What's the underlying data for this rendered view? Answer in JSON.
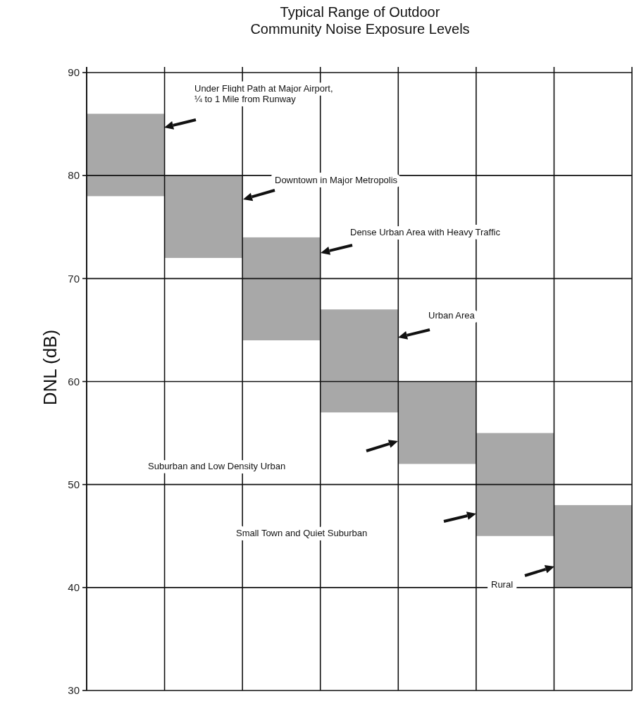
{
  "chart_data": {
    "type": "bar",
    "title": "Typical Range of Outdoor\nCommunity Noise Exposure Levels",
    "ylabel": "DNL (dB)",
    "categories": [
      null,
      null,
      null,
      null,
      null,
      null,
      null
    ],
    "base": [
      78,
      72,
      64,
      57,
      52,
      45,
      40
    ],
    "values": [
      8,
      8,
      10,
      10,
      8,
      10,
      8
    ],
    "color": "#a8a8a8",
    "ylim": [
      30,
      90
    ],
    "yticks": [
      30,
      40,
      50,
      60,
      70,
      80,
      90
    ],
    "grid": true,
    "annotations": [
      "Under Flight Path at Major Airport,\n¼ to 1 Mile from Runway",
      "Downtown in Major Metropolis",
      "Dense Urban Area with Heavy Traffic",
      "Urban Area",
      "Suburban and Low Density Urban",
      "Small Town and Quiet Suburban",
      "Rural"
    ]
  }
}
